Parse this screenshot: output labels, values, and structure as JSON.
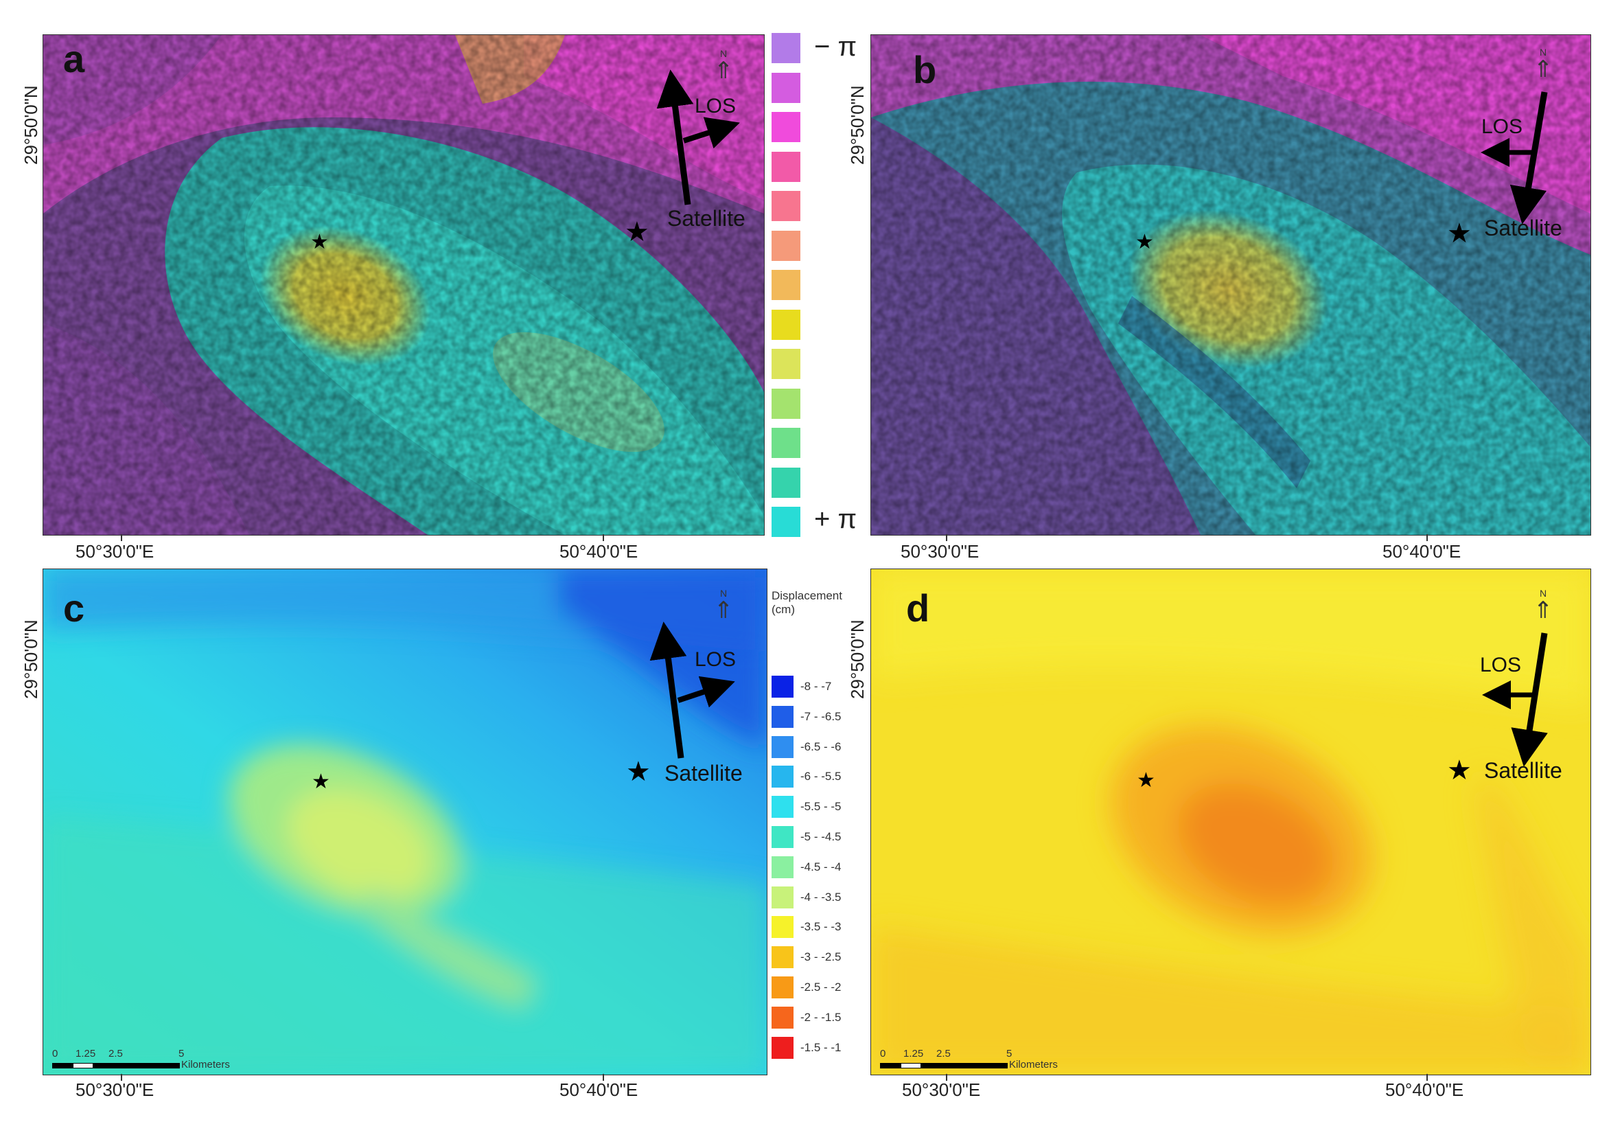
{
  "panels": {
    "a": {
      "label": "a"
    },
    "b": {
      "label": "b"
    },
    "c": {
      "label": "c"
    },
    "d": {
      "label": "d"
    }
  },
  "coordinates": {
    "lat": "29°50'0\"N",
    "lon_left": "50°30'0\"E",
    "lon_right": "50°40'0\"E"
  },
  "annotations": {
    "los": "LOS",
    "satellite": "Satellite",
    "north": "N"
  },
  "phase_legend": {
    "min_label": "− π",
    "max_label": "+ π",
    "colors": [
      "#b27be8",
      "#d45ce0",
      "#f04bdc",
      "#f25aa8",
      "#f7758f",
      "#f59a7a",
      "#f2b95a",
      "#e8dc1e",
      "#dce45a",
      "#a4e36e",
      "#6ee08a",
      "#35d3ac",
      "#28dcd6"
    ]
  },
  "displacement_legend": {
    "title": "Displacement (cm)",
    "entries": [
      {
        "label": "-8 - -7",
        "color": "#0a22e6"
      },
      {
        "label": "-7 - -6.5",
        "color": "#1f5ee8"
      },
      {
        "label": "-6.5 - -6",
        "color": "#2f8ef0"
      },
      {
        "label": "-6 - -5.5",
        "color": "#26b6ee"
      },
      {
        "label": "-5.5 - -5",
        "color": "#2ee0ee"
      },
      {
        "label": "-5 - -4.5",
        "color": "#3fe6c4"
      },
      {
        "label": "-4.5 - -4",
        "color": "#8af0a0"
      },
      {
        "label": "-4 - -3.5",
        "color": "#c8f27a"
      },
      {
        "label": "-3.5 - -3",
        "color": "#f6f22a"
      },
      {
        "label": "-3 - -2.5",
        "color": "#f8c41a"
      },
      {
        "label": "-2.5 - -2",
        "color": "#f89a16"
      },
      {
        "label": "-2 - -1.5",
        "color": "#f6661c"
      },
      {
        "label": "-1.5 - -1",
        "color": "#ee1e1e"
      }
    ]
  },
  "scale_bar": {
    "ticks": [
      "0",
      "1.25",
      "2.5",
      "5"
    ],
    "unit": "Kilometers"
  }
}
